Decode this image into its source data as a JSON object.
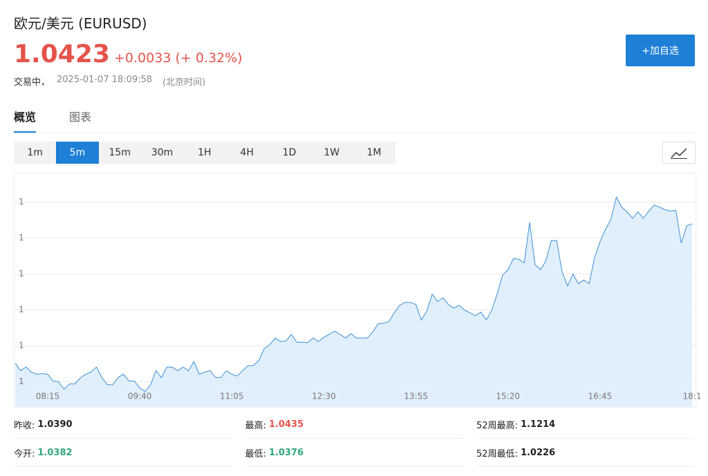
{
  "header": {
    "title": "欧元/美元  (EURUSD)",
    "price": "1.0423",
    "change": "+0.0033",
    "change_percent": "(+ 0.32%)",
    "status": "交易中，",
    "time": "2025-01-07 18:09:58",
    "timezone": "(北京时间)"
  },
  "button": "+加自选",
  "tabs": [
    "概览",
    "图表"
  ],
  "intervals": [
    "1m",
    "5m",
    "15m",
    "30m",
    "1H",
    "4H",
    "1D",
    "1W",
    "1M"
  ],
  "chart_data": {
    "type": "area",
    "color": "#3c8fd6",
    "fill": "#e0effb",
    "grid": true,
    "ylim": [
      1.0373,
      1.0438
    ],
    "yticks": [
      {
        "value": 1.038,
        "label": "1"
      },
      {
        "value": 1.039,
        "label": "1"
      },
      {
        "value": 1.04,
        "label": "1"
      },
      {
        "value": 1.041,
        "label": "1"
      },
      {
        "value": 1.042,
        "label": "1"
      },
      {
        "value": 1.043,
        "label": "1"
      }
    ],
    "categories": [
      null,
      null,
      null,
      null,
      null,
      null,
      "08:15",
      null,
      null,
      null,
      null,
      null,
      null,
      null,
      null,
      null,
      null,
      null,
      null,
      null,
      null,
      null,
      null,
      "09:40",
      null,
      null,
      null,
      null,
      null,
      null,
      null,
      null,
      null,
      null,
      null,
      null,
      null,
      null,
      null,
      null,
      "11:05",
      null,
      null,
      null,
      null,
      null,
      null,
      null,
      null,
      null,
      null,
      null,
      null,
      null,
      null,
      null,
      null,
      "12:30",
      null,
      null,
      null,
      null,
      null,
      null,
      null,
      null,
      null,
      null,
      null,
      null,
      null,
      null,
      null,
      null,
      "13:55",
      null,
      null,
      null,
      null,
      null,
      null,
      null,
      null,
      null,
      null,
      null,
      null,
      null,
      null,
      null,
      null,
      "15:20",
      null,
      null,
      null,
      null,
      null,
      null,
      null,
      null,
      null,
      null,
      null,
      null,
      null,
      null,
      null,
      null,
      "16:45",
      null,
      null,
      null,
      null,
      null,
      null,
      null,
      null,
      null,
      null,
      null,
      null,
      null,
      null,
      null,
      null,
      "18:1"
    ],
    "values": [
      1.03852,
      1.03831,
      1.03841,
      1.03827,
      1.03821,
      1.03823,
      1.03821,
      1.03802,
      1.038,
      1.03779,
      1.03794,
      1.03794,
      1.0381,
      1.03821,
      1.03827,
      1.03841,
      1.03812,
      1.03792,
      1.03792,
      1.03812,
      1.03821,
      1.03802,
      1.03802,
      1.03783,
      1.03773,
      1.03792,
      1.03831,
      1.03812,
      1.03841,
      1.03841,
      1.03831,
      1.03841,
      1.03831,
      1.03856,
      1.03821,
      1.03827,
      1.03831,
      1.03812,
      1.03812,
      1.03831,
      1.03821,
      1.03816,
      1.03831,
      1.03845,
      1.03845,
      1.0386,
      1.03893,
      1.03903,
      1.03922,
      1.03912,
      1.03914,
      1.03932,
      1.0391,
      1.0391,
      1.03909,
      1.03922,
      1.03912,
      1.03924,
      1.03932,
      1.03941,
      1.03932,
      1.03922,
      1.03934,
      1.03922,
      1.03922,
      1.03922,
      1.03938,
      1.03961,
      1.03963,
      1.03967,
      1.03992,
      1.04013,
      1.04021,
      1.04021,
      1.04015,
      1.03972,
      1.03996,
      1.04044,
      1.04023,
      1.04034,
      1.04015,
      1.04005,
      1.04013,
      1.03999,
      1.03992,
      1.03984,
      1.03994,
      1.03972,
      1.03999,
      1.04044,
      1.04097,
      1.04112,
      1.04143,
      1.04141,
      1.04131,
      1.04244,
      1.04126,
      1.04112,
      1.04137,
      1.04193,
      1.04193,
      1.04106,
      1.04067,
      1.041,
      1.04073,
      1.04083,
      1.04073,
      1.04147,
      1.0419,
      1.04224,
      1.04252,
      1.04314,
      1.04286,
      1.04273,
      1.04255,
      1.04273,
      1.04255,
      1.04275,
      1.04292,
      1.04286,
      1.04279,
      1.04275,
      1.04277,
      1.04186,
      1.04234,
      1.0424
    ]
  },
  "stats": {
    "rows": [
      [
        {
          "label": "昨收:",
          "value": "1.0390"
        },
        {
          "label": "最高:",
          "value": "1.0435"
        },
        {
          "label": "52周最高:",
          "value": "1.1214"
        }
      ],
      [
        {
          "label": "今开:",
          "value": "1.0382"
        },
        {
          "label": "最低:",
          "value": "1.0376"
        },
        {
          "label": "52周最低:",
          "value": "1.0226"
        }
      ]
    ]
  }
}
